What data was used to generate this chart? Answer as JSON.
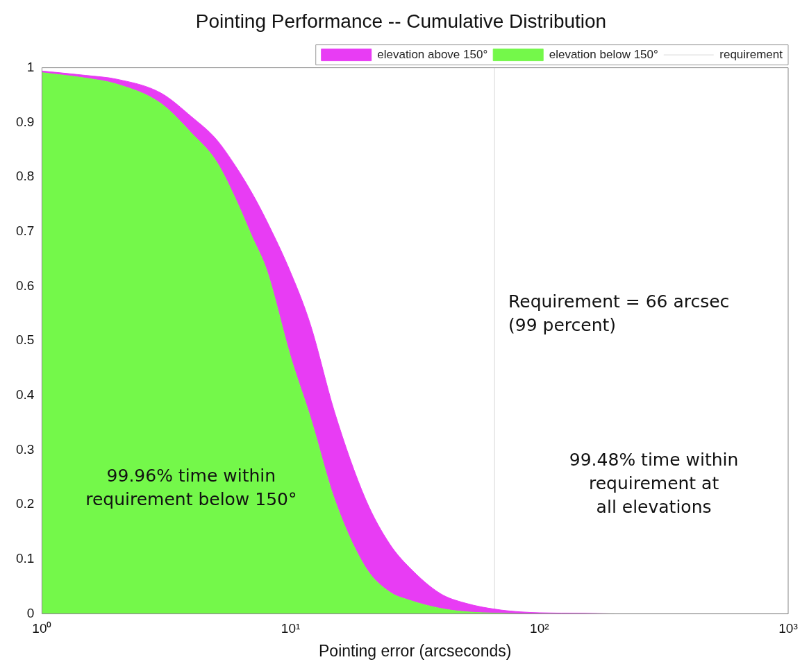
{
  "chart_data": {
    "type": "area",
    "title": "Pointing Performance -- Cumulative Distribution",
    "xlabel": "Pointing error (arcseconds)",
    "stacked": true,
    "log": "x",
    "x": [
      1,
      1.5,
      2,
      3,
      4,
      5,
      6,
      7,
      8,
      10,
      12,
      15,
      20,
      25,
      30,
      40,
      50,
      70,
      100,
      150,
      200
    ],
    "series": [
      {
        "name": "elevation below 150°",
        "color": "#74f84a",
        "values": [
          0.991,
          0.981,
          0.97,
          0.935,
          0.88,
          0.83,
          0.76,
          0.69,
          0.63,
          0.47,
          0.36,
          0.21,
          0.085,
          0.04,
          0.025,
          0.01,
          0.004,
          0.001,
          0,
          0,
          0
        ]
      },
      {
        "name": "elevation above 150°",
        "color": "#e83cf4",
        "values": [
          0.003,
          0.005,
          0.009,
          0.019,
          0.03,
          0.04,
          0.06,
          0.08,
          0.09,
          0.155,
          0.17,
          0.16,
          0.125,
          0.088,
          0.06,
          0.027,
          0.016,
          0.006,
          0.002,
          0.001,
          0
        ]
      }
    ],
    "xlim": [
      1,
      1000
    ],
    "xticks": [
      {
        "value": 1,
        "label": "10⁰"
      },
      {
        "value": 10,
        "label": "10¹"
      },
      {
        "value": 100,
        "label": "10²"
      },
      {
        "value": 1000,
        "label": "10³"
      }
    ],
    "ylim": [
      0,
      1
    ],
    "yticks": [
      0,
      0.1,
      0.2,
      0.3,
      0.4,
      0.5,
      0.6,
      0.7,
      0.8,
      0.9,
      1
    ],
    "grid": false,
    "legend": "top right",
    "ref_lines": [
      {
        "axis": "x",
        "value": 66,
        "label": "requirement",
        "color": "#d8d8d8"
      }
    ],
    "annotations": [
      "Requirement = 66 arcsec\n(99 percent)",
      "99.96% time within\nrequirement below 150°",
      "99.48% time within\nrequirement at\nall elevations"
    ]
  }
}
